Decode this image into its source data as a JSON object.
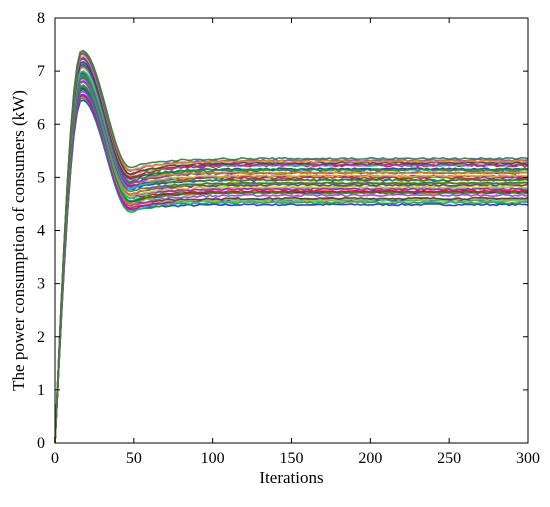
{
  "chart_data": {
    "type": "line",
    "title": "",
    "xlabel": "Iterations",
    "ylabel": "The power consumption of consumers (kW)",
    "xlim": [
      0,
      300
    ],
    "ylim": [
      0,
      8
    ],
    "x_ticks": [
      0,
      50,
      100,
      150,
      200,
      250,
      300
    ],
    "y_ticks": [
      0,
      1,
      2,
      3,
      4,
      5,
      6,
      7,
      8
    ],
    "grid": false,
    "legend": "none",
    "series_summary": {
      "count_approx": 40,
      "start_value": 0,
      "peak_iteration": 17,
      "peak_range": [
        6.5,
        7.4
      ],
      "trough_iteration": 48,
      "trough_range": [
        4.35,
        5.15
      ],
      "steady_state_range": [
        4.5,
        5.35
      ]
    },
    "colors": [
      "#1f1fff",
      "#00b000",
      "#ff0000",
      "#00c8c8",
      "#c800c8",
      "#c8c800",
      "#404040",
      "#8040ff",
      "#ff8000",
      "#208040"
    ]
  }
}
